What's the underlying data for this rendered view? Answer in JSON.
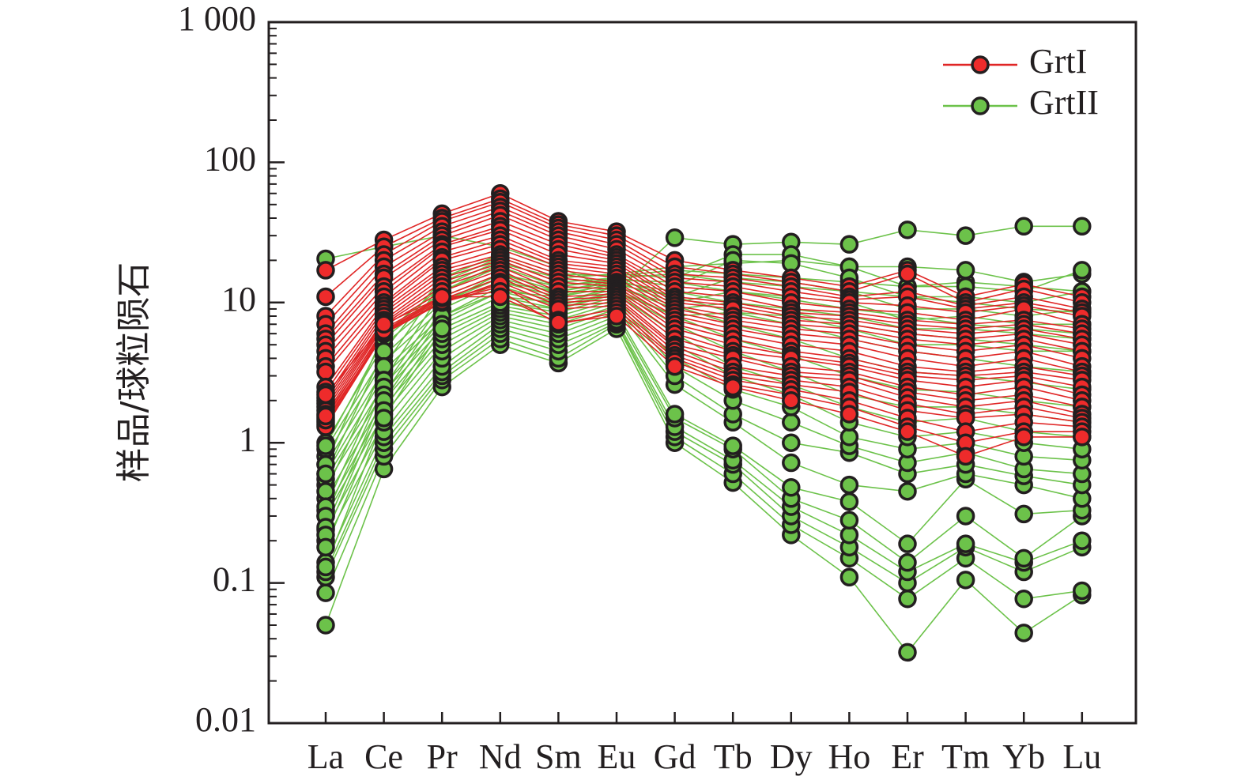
{
  "chart_data": {
    "type": "line",
    "title": "",
    "xlabel": "",
    "ylabel": "样品/球粒陨石",
    "yscale": "log",
    "ylim": [
      0.01,
      1000
    ],
    "yticks": [
      {
        "value": 0.01,
        "label": "0.01"
      },
      {
        "value": 0.1,
        "label": "0.1"
      },
      {
        "value": 1,
        "label": "1"
      },
      {
        "value": 10,
        "label": "10"
      },
      {
        "value": 100,
        "label": "100"
      },
      {
        "value": 1000,
        "label": "1 000"
      }
    ],
    "categories": [
      "La",
      "Ce",
      "Pr",
      "Nd",
      "Sm",
      "Eu",
      "Gd",
      "Tb",
      "Dy",
      "Ho",
      "Er",
      "Tm",
      "Yb",
      "Lu"
    ],
    "legend_position": "top-right",
    "series": [
      {
        "name": "GrtII",
        "line_color": "#6cc24a",
        "marker_color": "#6cc24a",
        "samples": [
          [
            20.5,
            25,
            30,
            25,
            18,
            12,
            29,
            26,
            27,
            26,
            33,
            30,
            35,
            35
          ],
          [
            0.05,
            0.65,
            2.5,
            5,
            3.7,
            6.5,
            1,
            0.52,
            0.22,
            0.11,
            0.032,
            0.105,
            0.044,
            0.082
          ],
          [
            0.085,
            0.8,
            2.8,
            5.5,
            4,
            7,
            1.1,
            0.6,
            0.26,
            0.15,
            0.077,
            0.15,
            0.077,
            0.088
          ],
          [
            0.11,
            0.9,
            3,
            6,
            4.5,
            7.2,
            1.2,
            0.7,
            0.3,
            0.18,
            0.1,
            0.18,
            0.12,
            0.18
          ],
          [
            0.12,
            1,
            3.2,
            6.5,
            5,
            7.5,
            1.3,
            0.75,
            0.35,
            0.22,
            0.12,
            0.19,
            0.14,
            0.2
          ],
          [
            0.14,
            1.1,
            3.5,
            7,
            5.5,
            8,
            1.5,
            0.9,
            0.4,
            0.28,
            0.14,
            0.3,
            0.15,
            0.3
          ],
          [
            0.2,
            1.2,
            4,
            7.5,
            6,
            8.5,
            1.6,
            0.95,
            0.48,
            0.38,
            0.19,
            0.55,
            0.31,
            0.33
          ],
          [
            0.24,
            1.4,
            4.5,
            8,
            6.5,
            9,
            2.6,
            1.4,
            0.72,
            0.5,
            0.45,
            0.6,
            0.5,
            0.4
          ],
          [
            0.3,
            1.6,
            5,
            8.5,
            7,
            9.5,
            3,
            1.6,
            1,
            0.85,
            0.6,
            0.7,
            0.58,
            0.5
          ],
          [
            0.33,
            1.8,
            5.5,
            9,
            7.5,
            10,
            3.5,
            2,
            1.4,
            0.95,
            0.72,
            0.85,
            0.65,
            0.6
          ],
          [
            0.4,
            2,
            6,
            9.5,
            8,
            10.5,
            4,
            2.4,
            1.8,
            1.1,
            0.9,
            1,
            0.8,
            0.75
          ],
          [
            0.5,
            2.3,
            6.5,
            10,
            8.5,
            11,
            5,
            3,
            2.2,
            1.4,
            1.1,
            1.2,
            1,
            0.9
          ],
          [
            0.55,
            2.6,
            7,
            11,
            9,
            11.5,
            6,
            3.5,
            2.6,
            1.8,
            1.4,
            1.5,
            1.2,
            1.1
          ],
          [
            0.6,
            3,
            7.5,
            12,
            9.5,
            12,
            7,
            4.5,
            3.2,
            2.2,
            1.8,
            1.8,
            1.6,
            1.4
          ],
          [
            0.7,
            3.3,
            8,
            13,
            10,
            12.5,
            8,
            5.5,
            4.2,
            3,
            2.4,
            2.3,
            2,
            1.8
          ],
          [
            0.8,
            3.8,
            9,
            14,
            11,
            13,
            9.5,
            7,
            5.5,
            4,
            3.2,
            3,
            2.7,
            2.4
          ],
          [
            0.9,
            4.2,
            10,
            15,
            11.5,
            13.5,
            11,
            8.5,
            7,
            5.5,
            4.5,
            4,
            3.5,
            3.2
          ],
          [
            1,
            5,
            11,
            16,
            12,
            14,
            12,
            10,
            8.5,
            7,
            6,
            5.5,
            5,
            4.5
          ],
          [
            0.95,
            5.5,
            12,
            18,
            13,
            14.5,
            14,
            12,
            10.5,
            9,
            8,
            7,
            6.5,
            6
          ],
          [
            0.7,
            6,
            13,
            20,
            14,
            15,
            16,
            14,
            13,
            12,
            11,
            10,
            9,
            8.5
          ],
          [
            0.6,
            4.5,
            15,
            22,
            16,
            15.5,
            17,
            16,
            15,
            14,
            13,
            14,
            13,
            12
          ],
          [
            0.45,
            3.5,
            14,
            21,
            15,
            16,
            18,
            19,
            20,
            18,
            18,
            17,
            14,
            16
          ],
          [
            0.35,
            2.8,
            12,
            19,
            15,
            16,
            15,
            22,
            22,
            18,
            13,
            13,
            12,
            17
          ],
          [
            0.3,
            2.5,
            10,
            16,
            13,
            15,
            13,
            20,
            19,
            15,
            11,
            11,
            10,
            12
          ],
          [
            0.25,
            2.2,
            9,
            14,
            12,
            14.5,
            11,
            15,
            14,
            12,
            9,
            9,
            8,
            9
          ],
          [
            0.22,
            2,
            8,
            12,
            11,
            14,
            10,
            12,
            11,
            10,
            7.5,
            8,
            7,
            7
          ],
          [
            0.18,
            1.7,
            7,
            11,
            10,
            13,
            9,
            10,
            9,
            8,
            6.5,
            6.5,
            6,
            5.5
          ],
          [
            0.13,
            1.5,
            6.5,
            10,
            9,
            12,
            8,
            8.5,
            8,
            6.5,
            5,
            5,
            4.5,
            4.5
          ]
        ]
      },
      {
        "name": "GrtI",
        "line_color": "#e02626",
        "marker_color": "#ee2b2b",
        "samples": [
          [
            17,
            28,
            43,
            60,
            38,
            32,
            20,
            17,
            15,
            13,
            17,
            11,
            13.5,
            11
          ],
          [
            11,
            25,
            40,
            55,
            36,
            30,
            18,
            16,
            14,
            12,
            16,
            10,
            12.5,
            10
          ],
          [
            8,
            22,
            38,
            52,
            34,
            28,
            16,
            15,
            13,
            11,
            12,
            9.5,
            11,
            9
          ],
          [
            7,
            20,
            35,
            48,
            32,
            26,
            15,
            14,
            12,
            10.5,
            11,
            9,
            10,
            8.5
          ],
          [
            6,
            18,
            32,
            45,
            30,
            24,
            14,
            13,
            11,
            10,
            9.5,
            8.5,
            9.5,
            8
          ],
          [
            5.5,
            16,
            30,
            42,
            28,
            22,
            13,
            12,
            10,
            9,
            8.5,
            7.5,
            9,
            7
          ],
          [
            5,
            15,
            28,
            38,
            26,
            21,
            12,
            11,
            9,
            8.5,
            7.5,
            7,
            7.5,
            6.5
          ],
          [
            4.5,
            13,
            26,
            35,
            24,
            20,
            11,
            10,
            8.5,
            8,
            7,
            6.5,
            7,
            6
          ],
          [
            4,
            12,
            25,
            33,
            22,
            19,
            10.5,
            9.5,
            8,
            7.5,
            6.5,
            6,
            6.5,
            5.5
          ],
          [
            3.5,
            11,
            23,
            30,
            20,
            18,
            10,
            9,
            7.5,
            7,
            6,
            5.5,
            6,
            5
          ],
          [
            3.2,
            10,
            21,
            28,
            19,
            17,
            9.5,
            8,
            7,
            6.5,
            5.5,
            5,
            5.5,
            4.5
          ],
          [
            2.5,
            9.5,
            20,
            26,
            18,
            16,
            9,
            7.5,
            6.5,
            6,
            5,
            4.5,
            5,
            4
          ],
          [
            2.3,
            9,
            18,
            24,
            17,
            15,
            8.5,
            7,
            6,
            5.5,
            4.5,
            4,
            4.5,
            3.5
          ],
          [
            2.1,
            8.5,
            17,
            22,
            16,
            14,
            8,
            6.5,
            5.5,
            5,
            4,
            3.5,
            4,
            3.2
          ],
          [
            2,
            8,
            16,
            21,
            15,
            13.5,
            7.5,
            6,
            5,
            4.5,
            3.5,
            3.2,
            3.5,
            3
          ],
          [
            1.9,
            7.5,
            15,
            20,
            14,
            13,
            7,
            5.5,
            4.5,
            4,
            3.2,
            3,
            3.2,
            2.8
          ],
          [
            1.8,
            7.2,
            14,
            19,
            13,
            12.5,
            6.5,
            5,
            4.2,
            3.7,
            3,
            2.8,
            3,
            2.5
          ],
          [
            1.7,
            7,
            13,
            18,
            12,
            12,
            6,
            4.5,
            4,
            3.5,
            2.8,
            2.5,
            2.8,
            2.2
          ],
          [
            1.6,
            6.8,
            12,
            17,
            11,
            11.5,
            5.5,
            4.2,
            3.5,
            3.2,
            2.5,
            2.2,
            2.5,
            2
          ],
          [
            1.5,
            6.5,
            11,
            16,
            10.5,
            11,
            5,
            4,
            3.2,
            3,
            2.3,
            2,
            2.2,
            1.8
          ],
          [
            1.4,
            6.2,
            10.5,
            15,
            10,
            10.5,
            4.8,
            3.5,
            3,
            2.8,
            2.1,
            1.8,
            2,
            1.6
          ],
          [
            1.35,
            6,
            10,
            14,
            9.5,
            10,
            4.5,
            3.2,
            2.8,
            2.5,
            1.9,
            1.6,
            1.8,
            1.5
          ],
          [
            1.3,
            6,
            10,
            13,
            9,
            9.5,
            4.2,
            3,
            2.6,
            2.3,
            1.7,
            1.5,
            1.6,
            1.4
          ],
          [
            1.45,
            6.1,
            10.2,
            13.5,
            7.5,
            9,
            4,
            2.8,
            2.4,
            2,
            1.5,
            1.2,
            1.4,
            1.3
          ],
          [
            1.55,
            6.3,
            10.8,
            12,
            7,
            8.5,
            3.8,
            2.6,
            2.2,
            1.8,
            1.3,
            1,
            1.2,
            1.2
          ],
          [
            2.2,
            7,
            11,
            11,
            7.2,
            8,
            3.5,
            2.5,
            2,
            1.6,
            1.2,
            0.8,
            1.1,
            1.1
          ]
        ]
      }
    ]
  }
}
